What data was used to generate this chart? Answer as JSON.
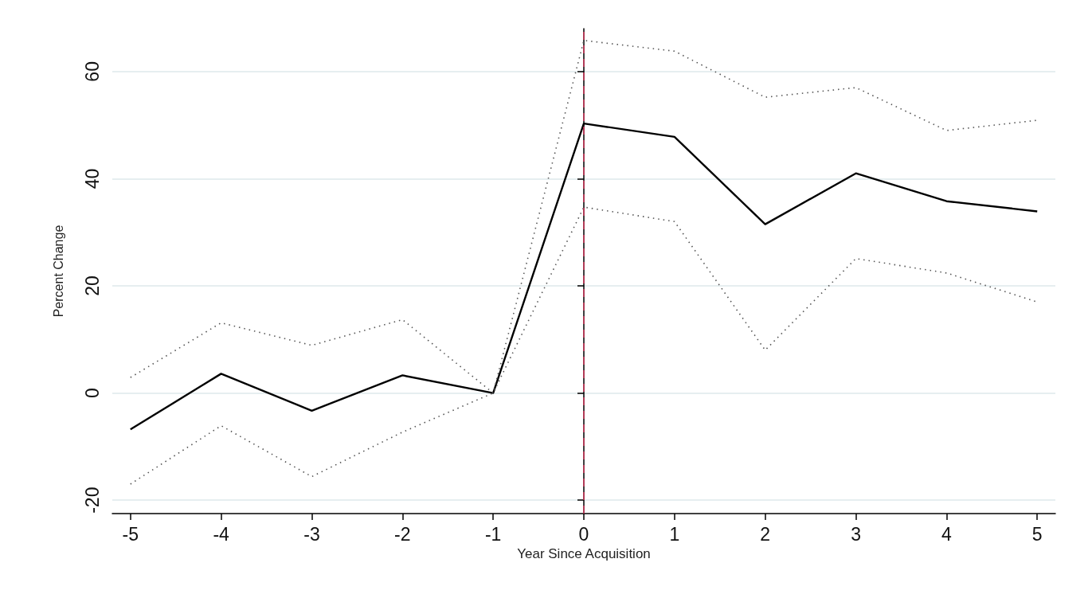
{
  "chart_data": {
    "type": "line",
    "xlabel": "Year Since Acquisition",
    "ylabel": "Percent Change",
    "x": [
      -5,
      -4,
      -3,
      -2,
      -1,
      0,
      1,
      2,
      3,
      4,
      5
    ],
    "series": [
      {
        "color": "#000000",
        "line_style": "solid",
        "values": [
          -6.8,
          3.6,
          -3.3,
          3.3,
          0,
          50.3,
          47.8,
          31.5,
          41,
          35.8,
          33.9
        ]
      },
      {
        "color": "#555555",
        "line_style": "dotted",
        "values": [
          2.9,
          13.1,
          8.9,
          13.7,
          0,
          65.8,
          63.8,
          55.2,
          57,
          49,
          50.9
        ]
      },
      {
        "color": "#555555",
        "line_style": "dotted",
        "values": [
          -17,
          -6.1,
          -15.6,
          -7.3,
          0,
          34.7,
          32,
          8,
          25.1,
          22.4,
          17
        ]
      }
    ],
    "xlim": [
      -5.2,
      5.2
    ],
    "xticks": [
      -5,
      -4,
      -3,
      -2,
      -1,
      0,
      1,
      2,
      3,
      4,
      5
    ],
    "ylim": [
      -22.5,
      68
    ],
    "yticks": [
      -20,
      0,
      20,
      40,
      60
    ],
    "grid": "y",
    "marker": "none",
    "ref_lines": [
      {
        "axis": "x",
        "value": 0,
        "color": "#d6385e",
        "line_style": "dashed"
      }
    ]
  }
}
